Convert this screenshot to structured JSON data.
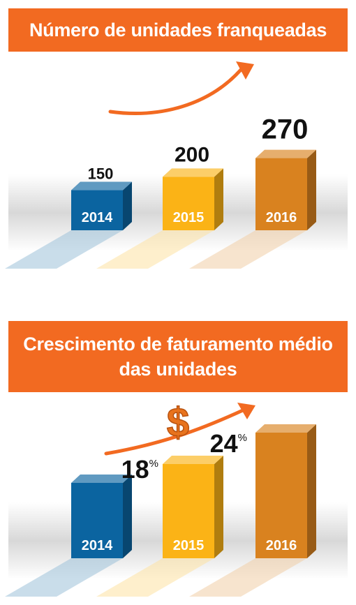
{
  "chart_data": [
    {
      "type": "bar",
      "title": "Número de unidades franqueadas",
      "categories": [
        "2014",
        "2015",
        "2016"
      ],
      "values": [
        150,
        200,
        270
      ],
      "value_labels": [
        "150",
        "200",
        "270"
      ],
      "trend_arrow": true
    },
    {
      "type": "bar",
      "title": "Crescimento de faturamento médio das unidades",
      "categories": [
        "2014",
        "2015",
        "2016"
      ],
      "values": [
        null,
        18,
        24
      ],
      "value_labels": [
        "",
        "18",
        "24"
      ],
      "unit": "%",
      "currency_symbol": "$",
      "trend_arrow": true
    }
  ],
  "colors": {
    "banner": "#f26a21",
    "bar_2014": "#0b64a0",
    "bar_2015": "#fbb316",
    "bar_2016": "#d9821f",
    "arrow": "#f26a21"
  },
  "icons": [
    "trend-arrow-icon",
    "dollar-sign-icon"
  ]
}
